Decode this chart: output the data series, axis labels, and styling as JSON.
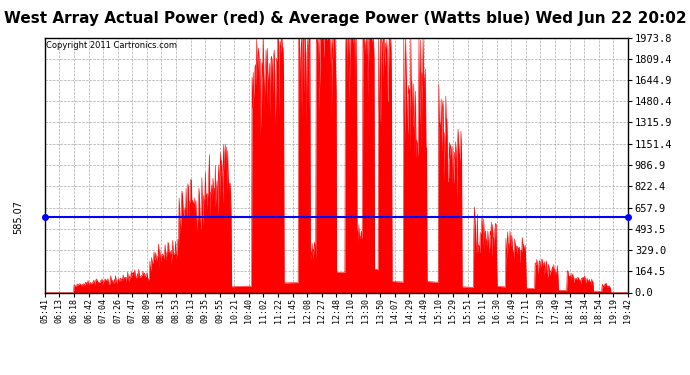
{
  "title": "West Array Actual Power (red) & Average Power (Watts blue) Wed Jun 22 20:02",
  "copyright": "Copyright 2011 Cartronics.com",
  "average_power": 585.07,
  "y_max": 1973.8,
  "y_min": 0.0,
  "y_ticks_right": [
    0.0,
    164.5,
    329.0,
    493.5,
    657.9,
    822.4,
    986.9,
    1151.4,
    1315.9,
    1480.4,
    1644.9,
    1809.4,
    1973.8
  ],
  "background_color": "#ffffff",
  "fill_color": "#ff0000",
  "line_color": "#0000ff",
  "grid_color": "#aaaaaa",
  "title_fontsize": 11,
  "x_times": [
    "05:41",
    "06:13",
    "06:18",
    "06:42",
    "07:04",
    "07:26",
    "07:47",
    "08:09",
    "08:31",
    "08:53",
    "09:13",
    "09:35",
    "09:55",
    "10:21",
    "10:40",
    "11:02",
    "11:22",
    "11:45",
    "12:08",
    "12:27",
    "12:48",
    "13:10",
    "13:30",
    "13:50",
    "14:07",
    "14:29",
    "14:49",
    "15:10",
    "15:29",
    "15:51",
    "16:11",
    "16:30",
    "16:49",
    "17:11",
    "17:30",
    "17:49",
    "18:14",
    "18:34",
    "18:54",
    "19:19",
    "19:42"
  ]
}
